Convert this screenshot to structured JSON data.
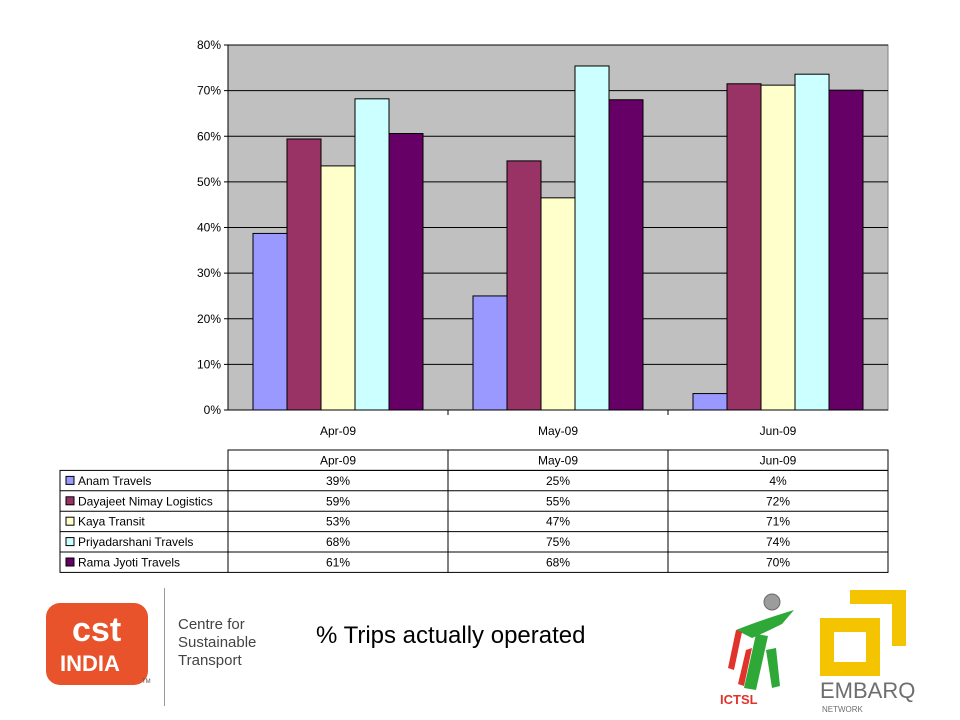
{
  "caption": "% Trips actually operated",
  "logos": {
    "cst": {
      "mark": "cst",
      "mark_sub": "INDIA",
      "tm": "TM",
      "line1": "Centre for",
      "line2": "Sustainable",
      "line3": "Transport"
    },
    "ictsl": {
      "text": "ICTSL"
    },
    "embarq": {
      "text": "EMBARQ",
      "sub": "NETWORK"
    }
  },
  "colors": {
    "plot_bg": "#c0c0c0",
    "series": [
      "#9999ff",
      "#993366",
      "#ffffcc",
      "#ccffff",
      "#660066"
    ],
    "cst_brand": "#e8532b",
    "embarq_brand": "#f5c400"
  },
  "chart_data": {
    "type": "bar",
    "categories": [
      "Apr-09",
      "May-09",
      "Jun-09"
    ],
    "series": [
      {
        "name": "Anam Travels",
        "values": [
          38.7,
          25.0,
          3.6
        ],
        "labels": [
          "39%",
          "25%",
          "4%"
        ]
      },
      {
        "name": "Dayajeet Nimay Logistics",
        "values": [
          59.4,
          54.6,
          71.5
        ],
        "labels": [
          "59%",
          "55%",
          "72%"
        ]
      },
      {
        "name": "Kaya Transit",
        "values": [
          53.5,
          46.5,
          71.2
        ],
        "labels": [
          "53%",
          "47%",
          "71%"
        ]
      },
      {
        "name": "Priyadarshani Travels",
        "values": [
          68.2,
          75.4,
          73.6
        ],
        "labels": [
          "68%",
          "75%",
          "74%"
        ]
      },
      {
        "name": "Rama Jyoti Travels",
        "values": [
          60.6,
          68.0,
          70.1
        ],
        "labels": [
          "61%",
          "68%",
          "70%"
        ]
      }
    ],
    "yticks": [
      "0%",
      "10%",
      "20%",
      "30%",
      "40%",
      "50%",
      "60%",
      "70%",
      "80%"
    ],
    "ylim": [
      0,
      80
    ],
    "grid": true,
    "legend": "data-table-below"
  }
}
